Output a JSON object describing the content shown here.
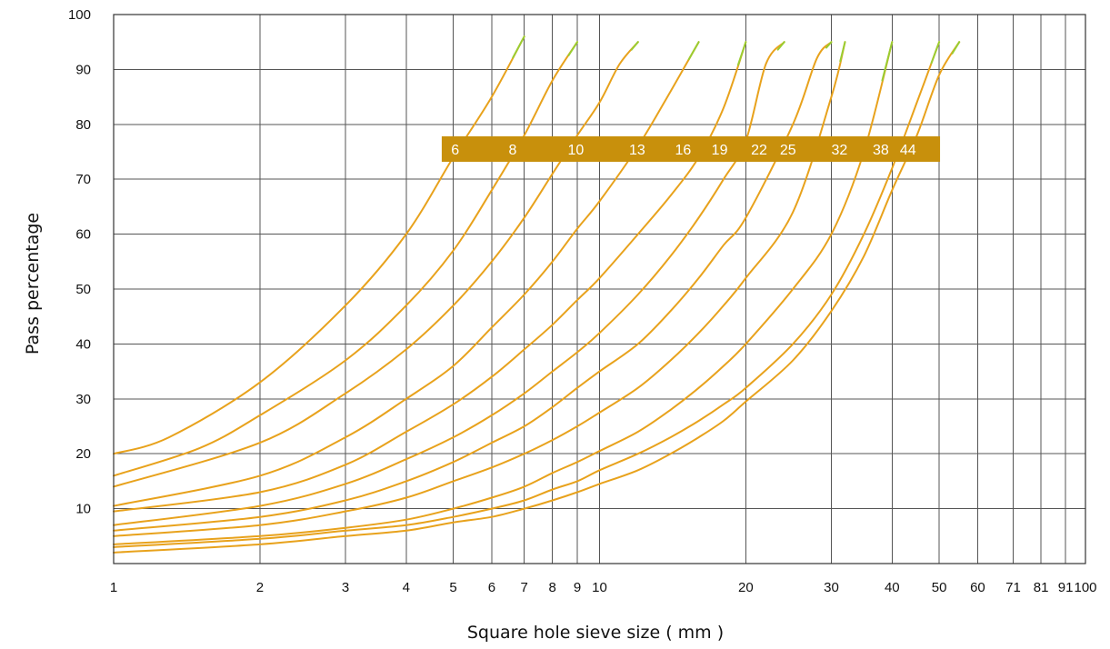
{
  "chart_data": {
    "type": "line",
    "title": "",
    "xlabel": "Square hole sieve size ( mm )",
    "ylabel": "Pass percentage",
    "x_scale": "log",
    "xlim": [
      1,
      100
    ],
    "ylim": [
      0,
      100
    ],
    "grid": true,
    "x_ticks": [
      1,
      2,
      3,
      4,
      5,
      6,
      7,
      8,
      9,
      10,
      20,
      30,
      40,
      50,
      60,
      71,
      81,
      91,
      100
    ],
    "x_tick_labels": [
      "1",
      "2",
      "3",
      "4",
      "5",
      "6",
      "7",
      "8",
      "9",
      "10",
      "20",
      "30",
      "40",
      "50",
      "60",
      "71",
      "81",
      "91",
      "100"
    ],
    "y_ticks": [
      10,
      20,
      30,
      40,
      50,
      60,
      70,
      80,
      90,
      100
    ],
    "y_tick_labels": [
      "10",
      "20",
      "30",
      "40",
      "50",
      "60",
      "70",
      "80",
      "90",
      "100"
    ],
    "colors": {
      "line": "#e8a21c",
      "line_tip": "#9acd32",
      "label_band": "#c8900c",
      "grid": "#555555"
    },
    "series_labels_band": {
      "y": 75.5,
      "x_start": 4.9,
      "x_end": 44.5
    },
    "series": [
      {
        "name": "6",
        "label_x": 4.95,
        "points": [
          [
            1,
            20
          ],
          [
            1.3,
            23
          ],
          [
            2,
            33
          ],
          [
            3,
            47
          ],
          [
            4,
            60
          ],
          [
            5,
            74
          ],
          [
            6,
            85
          ],
          [
            7,
            96
          ]
        ]
      },
      {
        "name": "8",
        "label_x": 6.5,
        "points": [
          [
            1,
            16
          ],
          [
            1.5,
            21
          ],
          [
            2,
            27
          ],
          [
            3,
            37
          ],
          [
            4,
            47
          ],
          [
            5,
            57
          ],
          [
            6,
            68
          ],
          [
            7,
            78
          ],
          [
            8,
            88
          ],
          [
            9,
            95
          ]
        ]
      },
      {
        "name": "10",
        "label_x": 8.6,
        "points": [
          [
            1,
            14
          ],
          [
            2,
            22
          ],
          [
            3,
            31
          ],
          [
            4,
            39
          ],
          [
            5,
            47
          ],
          [
            6,
            55
          ],
          [
            7,
            63
          ],
          [
            8,
            71
          ],
          [
            9,
            78
          ],
          [
            10,
            84
          ],
          [
            11,
            91
          ],
          [
            12,
            95
          ]
        ]
      },
      {
        "name": "13",
        "label_x": 11.5,
        "points": [
          [
            1,
            10.5
          ],
          [
            2,
            16
          ],
          [
            3,
            23
          ],
          [
            4,
            30
          ],
          [
            5,
            36
          ],
          [
            6,
            43
          ],
          [
            7,
            49
          ],
          [
            8,
            55
          ],
          [
            9,
            61
          ],
          [
            10,
            66
          ],
          [
            12,
            76
          ],
          [
            14,
            86
          ],
          [
            16,
            95
          ]
        ]
      },
      {
        "name": "16",
        "label_x": 14.3,
        "points": [
          [
            1,
            9.5
          ],
          [
            2,
            13
          ],
          [
            3,
            18
          ],
          [
            4,
            24
          ],
          [
            5,
            29
          ],
          [
            6,
            34
          ],
          [
            7,
            39
          ],
          [
            8,
            43.5
          ],
          [
            9,
            48
          ],
          [
            10,
            52
          ],
          [
            12,
            60
          ],
          [
            14,
            67
          ],
          [
            16,
            74
          ],
          [
            18,
            83
          ],
          [
            20,
            95
          ]
        ]
      },
      {
        "name": "19",
        "label_x": 17.0,
        "points": [
          [
            1,
            7
          ],
          [
            2,
            10.5
          ],
          [
            3,
            14.5
          ],
          [
            4,
            19
          ],
          [
            5,
            23
          ],
          [
            6,
            27
          ],
          [
            7,
            31
          ],
          [
            8,
            35
          ],
          [
            9,
            38.5
          ],
          [
            10,
            42
          ],
          [
            12,
            49
          ],
          [
            14,
            56
          ],
          [
            16,
            63
          ],
          [
            18,
            70
          ],
          [
            20,
            77
          ],
          [
            22,
            91
          ],
          [
            24,
            95
          ]
        ]
      },
      {
        "name": "22",
        "label_x": 20.5,
        "points": [
          [
            1,
            6
          ],
          [
            2,
            8.5
          ],
          [
            3,
            11.5
          ],
          [
            4,
            15
          ],
          [
            5,
            18.5
          ],
          [
            6,
            22
          ],
          [
            7,
            25
          ],
          [
            8,
            28.5
          ],
          [
            9,
            32
          ],
          [
            10,
            35
          ],
          [
            12,
            40
          ],
          [
            14,
            46
          ],
          [
            16,
            52
          ],
          [
            18,
            58
          ],
          [
            20,
            63
          ],
          [
            25,
            80
          ],
          [
            28,
            92
          ],
          [
            30,
            95
          ]
        ]
      },
      {
        "name": "25",
        "label_x": 23.5,
        "points": [
          [
            1,
            5
          ],
          [
            2,
            7
          ],
          [
            3,
            9.5
          ],
          [
            4,
            12
          ],
          [
            5,
            15
          ],
          [
            6,
            17.5
          ],
          [
            7,
            20
          ],
          [
            8,
            22.5
          ],
          [
            9,
            25
          ],
          [
            10,
            27.5
          ],
          [
            12,
            32
          ],
          [
            14,
            37
          ],
          [
            16,
            42
          ],
          [
            18,
            47
          ],
          [
            20,
            52
          ],
          [
            25,
            64
          ],
          [
            30,
            85
          ],
          [
            32,
            95
          ]
        ]
      },
      {
        "name": "32",
        "label_x": 30.0,
        "points": [
          [
            1,
            3.5
          ],
          [
            2,
            5
          ],
          [
            3,
            6.5
          ],
          [
            4,
            8
          ],
          [
            5,
            10
          ],
          [
            6,
            12
          ],
          [
            7,
            14
          ],
          [
            8,
            16.5
          ],
          [
            9,
            18.5
          ],
          [
            10,
            20.5
          ],
          [
            12,
            24
          ],
          [
            14,
            28
          ],
          [
            16,
            32
          ],
          [
            18,
            36
          ],
          [
            20,
            40
          ],
          [
            25,
            50
          ],
          [
            30,
            60
          ],
          [
            35,
            75
          ],
          [
            40,
            95
          ]
        ]
      },
      {
        "name": "38",
        "label_x": 36.5,
        "points": [
          [
            1,
            3
          ],
          [
            2,
            4.5
          ],
          [
            3,
            6
          ],
          [
            4,
            7
          ],
          [
            5,
            8.5
          ],
          [
            6,
            10
          ],
          [
            7,
            11.5
          ],
          [
            8,
            13.5
          ],
          [
            9,
            15
          ],
          [
            10,
            17
          ],
          [
            12,
            20
          ],
          [
            14,
            23
          ],
          [
            16,
            26
          ],
          [
            18,
            29
          ],
          [
            20,
            32
          ],
          [
            25,
            40
          ],
          [
            30,
            49
          ],
          [
            35,
            60
          ],
          [
            40,
            72
          ],
          [
            45,
            84
          ],
          [
            50,
            95
          ]
        ]
      },
      {
        "name": "44",
        "label_x": 41.5,
        "points": [
          [
            1,
            2
          ],
          [
            2,
            3.5
          ],
          [
            3,
            5
          ],
          [
            4,
            6
          ],
          [
            5,
            7.5
          ],
          [
            6,
            8.5
          ],
          [
            7,
            10
          ],
          [
            8,
            11.5
          ],
          [
            9,
            13
          ],
          [
            10,
            14.5
          ],
          [
            12,
            17
          ],
          [
            14,
            20
          ],
          [
            16,
            23
          ],
          [
            18,
            26
          ],
          [
            20,
            29.5
          ],
          [
            25,
            37
          ],
          [
            30,
            46
          ],
          [
            35,
            56
          ],
          [
            40,
            68
          ],
          [
            45,
            78
          ],
          [
            50,
            89
          ],
          [
            55,
            95
          ]
        ]
      }
    ]
  }
}
